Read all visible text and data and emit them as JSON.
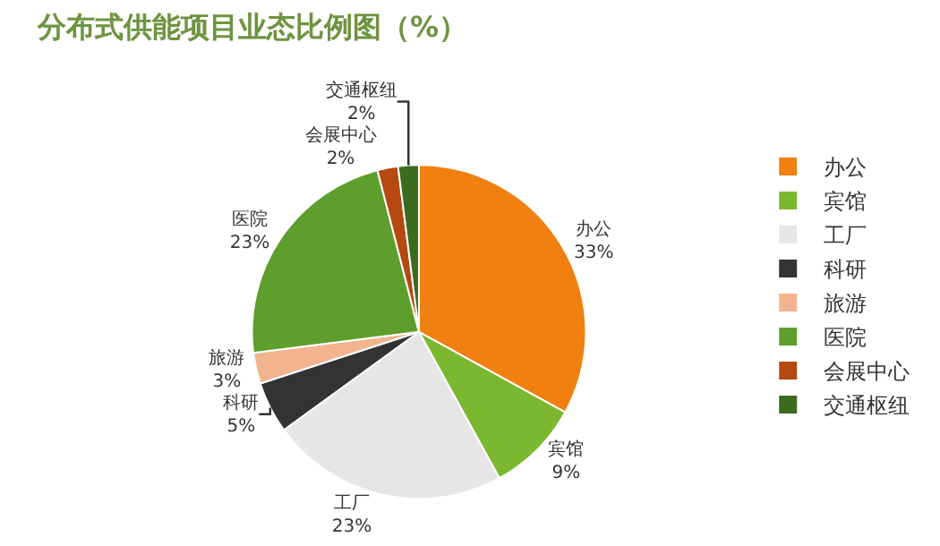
{
  "chart_data": {
    "type": "pie",
    "title": "分布式供能项目业态比例图（%）",
    "categories": [
      "办公",
      "宾馆",
      "工厂",
      "科研",
      "旅游",
      "医院",
      "会展中心",
      "交通枢纽"
    ],
    "values": [
      33,
      9,
      23,
      5,
      3,
      23,
      2,
      2
    ],
    "value_labels": [
      "33%",
      "9%",
      "23%",
      "5%",
      "3%",
      "23%",
      "2%",
      "2%"
    ],
    "colors": [
      "#f08010",
      "#7cb82f",
      "#e6e6e6",
      "#333333",
      "#f2b48f",
      "#5e9e2c",
      "#b5490f",
      "#3b6b1f"
    ],
    "legend": "right"
  }
}
